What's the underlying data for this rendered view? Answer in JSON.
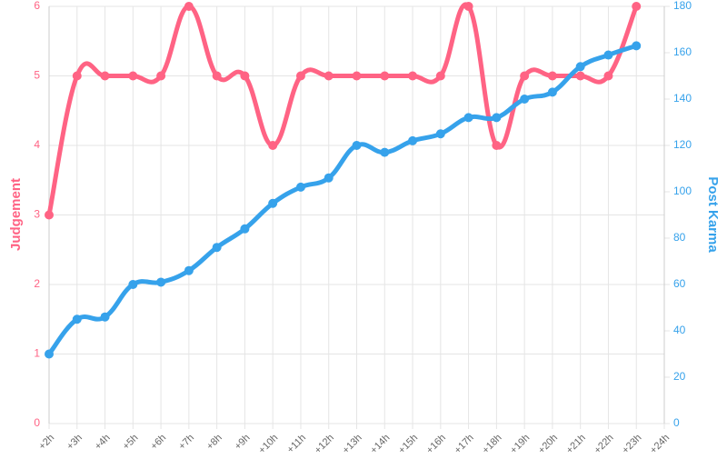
{
  "chart_data": {
    "type": "line",
    "categories": [
      "+2h",
      "+3h",
      "+4h",
      "+5h",
      "+6h",
      "+7h",
      "+8h",
      "+9h",
      "+10h",
      "+11h",
      "+12h",
      "+13h",
      "+14h",
      "+15h",
      "+16h",
      "+17h",
      "+18h",
      "+19h",
      "+20h",
      "+21h",
      "+22h",
      "+23h",
      "+24h"
    ],
    "series": [
      {
        "name": "Judgement",
        "color": "#ff6384",
        "axis": "y",
        "values": [
          3,
          5,
          5,
          5,
          5,
          6,
          5,
          5,
          4,
          5,
          5,
          5,
          5,
          5,
          5,
          6,
          4,
          5,
          5,
          5,
          5,
          6,
          null
        ]
      },
      {
        "name": "Post Karma",
        "color": "#36a2eb",
        "axis": "y2",
        "values": [
          30,
          45,
          46,
          60,
          61,
          66,
          76,
          84,
          95,
          102,
          106,
          120,
          117,
          122,
          125,
          132,
          132,
          140,
          143,
          154,
          159,
          163,
          null
        ]
      }
    ],
    "ylabel": "Judgement",
    "y2label": "Post Karma",
    "ylim": [
      0,
      6
    ],
    "yticks": [
      0,
      1,
      2,
      3,
      4,
      5,
      6
    ],
    "y2lim": [
      0,
      180
    ],
    "y2ticks": [
      0,
      20,
      40,
      60,
      80,
      100,
      120,
      140,
      160,
      180
    ],
    "grid": true
  }
}
